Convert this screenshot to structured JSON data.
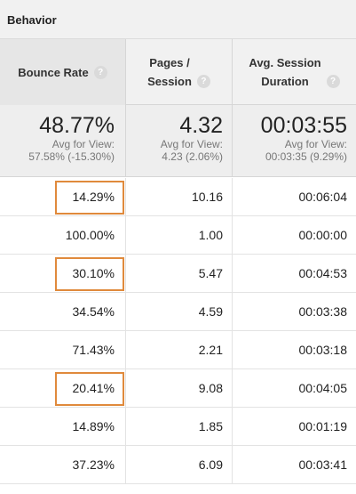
{
  "section": {
    "title": "Behavior"
  },
  "columns": [
    {
      "label_lines": [
        "Bounce Rate"
      ],
      "help": "?"
    },
    {
      "label_lines": [
        "Pages /",
        "Session"
      ],
      "help": "?"
    },
    {
      "label_lines": [
        "Avg. Session",
        "Duration"
      ],
      "help": "?"
    }
  ],
  "summary": [
    {
      "value": "48.77%",
      "avg_label": "Avg for View:",
      "avg_value": "57.58% (-15.30%)"
    },
    {
      "value": "4.32",
      "avg_label": "Avg for View:",
      "avg_value": "4.23 (2.06%)"
    },
    {
      "value": "00:03:55",
      "avg_label": "Avg for View:",
      "avg_value": "00:03:35 (9.29%)"
    }
  ],
  "rows": [
    {
      "bounce_rate": "14.29%",
      "pages_per_session": "10.16",
      "avg_duration": "00:06:04",
      "highlighted": true
    },
    {
      "bounce_rate": "100.00%",
      "pages_per_session": "1.00",
      "avg_duration": "00:00:00",
      "highlighted": false
    },
    {
      "bounce_rate": "30.10%",
      "pages_per_session": "5.47",
      "avg_duration": "00:04:53",
      "highlighted": true
    },
    {
      "bounce_rate": "34.54%",
      "pages_per_session": "4.59",
      "avg_duration": "00:03:38",
      "highlighted": false
    },
    {
      "bounce_rate": "71.43%",
      "pages_per_session": "2.21",
      "avg_duration": "00:03:18",
      "highlighted": false
    },
    {
      "bounce_rate": "20.41%",
      "pages_per_session": "9.08",
      "avg_duration": "00:04:05",
      "highlighted": true
    },
    {
      "bounce_rate": "14.89%",
      "pages_per_session": "1.85",
      "avg_duration": "00:01:19",
      "highlighted": false
    },
    {
      "bounce_rate": "37.23%",
      "pages_per_session": "6.09",
      "avg_duration": "00:03:41",
      "highlighted": false
    }
  ],
  "colors": {
    "highlight_border": "#e08a3c",
    "header_bg": "#f1f1f1",
    "sorted_header_bg": "#e6e6e6"
  }
}
